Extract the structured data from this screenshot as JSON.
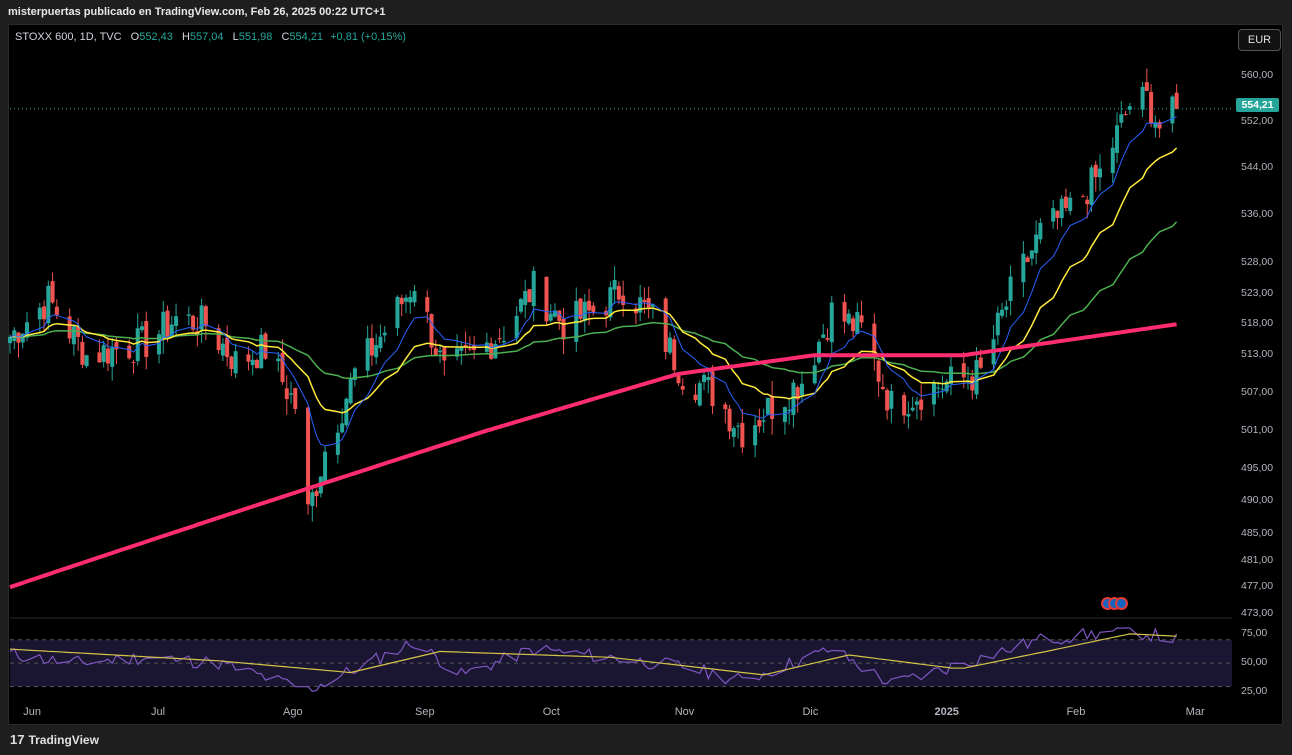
{
  "header": {
    "publisher_text": "misterpuertas publicado en TradingView.com, Feb 26, 2025 00:22 UTC+1"
  },
  "legend": {
    "symbol": "STOXX 600, 1D, TVC",
    "o_label": "O",
    "o_value": "552,43",
    "h_label": "H",
    "h_value": "557,04",
    "l_label": "L",
    "l_value": "551,98",
    "c_label": "C",
    "c_value": "554,21",
    "change": "+0,81 (+0,15%)"
  },
  "currency_button": "EUR",
  "last_price_tag": "554,21",
  "footer": {
    "brand": "TradingView",
    "logo_glyph": "17"
  },
  "colors": {
    "up": "#26a69a",
    "down": "#ef5350",
    "ema_fast": "#2962ff",
    "ema_mid": "#ffeb3b",
    "ema_slow": "#4caf50",
    "ma_200": "#ff2d6f",
    "rsi": "#7e57c2",
    "rsi_ma": "#d4c44a",
    "rsi_band": "#1a1530"
  },
  "chart_data": [
    {
      "type": "candlestick",
      "title": "STOXX 600, 1D, TVC",
      "x_ticks": [
        "Jun",
        "Jul",
        "Ago",
        "Sep",
        "Oct",
        "Nov",
        "Dic",
        "2025",
        "Feb",
        "Mar"
      ],
      "y_ticks": [
        "560,00",
        "552,00",
        "544,00",
        "536,00",
        "528,00",
        "523,00",
        "518,00",
        "513,00",
        "507,00",
        "501,00",
        "495,00",
        "490,00",
        "485,00",
        "481,00",
        "477,00",
        "473,00"
      ],
      "ylim": [
        473,
        561
      ],
      "scale": "log",
      "last_close": 554.21,
      "close_series_anchors": [
        [
          "2024-05-27",
          516
        ],
        [
          "2024-06-05",
          522
        ],
        [
          "2024-06-14",
          513
        ],
        [
          "2024-06-28",
          515
        ],
        [
          "2024-07-05",
          519
        ],
        [
          "2024-07-12",
          518
        ],
        [
          "2024-07-19",
          512
        ],
        [
          "2024-07-26",
          514
        ],
        [
          "2024-08-02",
          505
        ],
        [
          "2024-08-05",
          488
        ],
        [
          "2024-08-09",
          498
        ],
        [
          "2024-08-16",
          510
        ],
        [
          "2024-08-23",
          517
        ],
        [
          "2024-08-30",
          525
        ],
        [
          "2024-09-06",
          510
        ],
        [
          "2024-09-13",
          513
        ],
        [
          "2024-09-20",
          517
        ],
        [
          "2024-09-27",
          524
        ],
        [
          "2024-10-04",
          518
        ],
        [
          "2024-10-11",
          520
        ],
        [
          "2024-10-18",
          524
        ],
        [
          "2024-10-25",
          519
        ],
        [
          "2024-11-01",
          510
        ],
        [
          "2024-11-08",
          507
        ],
        [
          "2024-11-15",
          501
        ],
        [
          "2024-11-22",
          505
        ],
        [
          "2024-11-29",
          509
        ],
        [
          "2024-12-06",
          520
        ],
        [
          "2024-12-13",
          517
        ],
        [
          "2024-12-20",
          505
        ],
        [
          "2024-12-30",
          508
        ],
        [
          "2025-01-10",
          510
        ],
        [
          "2025-01-17",
          523
        ],
        [
          "2025-01-24",
          533
        ],
        [
          "2025-01-31",
          537
        ],
        [
          "2025-02-07",
          543
        ],
        [
          "2025-02-14",
          555
        ],
        [
          "2025-02-18",
          556
        ],
        [
          "2025-02-21",
          551
        ],
        [
          "2025-02-25",
          554.21
        ]
      ],
      "series": [
        {
          "name": "",
          "kind": "ema_fast",
          "color": "#2962ff"
        },
        {
          "name": "",
          "kind": "ema_mid",
          "color": "#ffeb3b"
        },
        {
          "name": "",
          "kind": "ema_slow",
          "color": "#4caf50"
        },
        {
          "name": "",
          "kind": "ma_200",
          "color": "#ff2d6f",
          "values": [
            [
              "2024-05-27",
              477
            ],
            [
              "2024-08-05",
              492
            ],
            [
              "2024-09-16",
              501
            ],
            [
              "2024-10-31",
              510
            ],
            [
              "2024-12-02",
              513
            ],
            [
              "2025-01-06",
              513
            ],
            [
              "2025-02-25",
              518
            ]
          ]
        }
      ]
    },
    {
      "type": "line",
      "title": "",
      "y_ticks": [
        "75,00",
        "50,00",
        "25,00"
      ],
      "ylim": [
        22,
        80
      ],
      "bands": [
        70,
        50,
        30
      ],
      "series": [
        {
          "name": "",
          "color": "#7e57c2",
          "values": [
            [
              "2024-05-27",
              58
            ],
            [
              "2024-06-10",
              50
            ],
            [
              "2024-06-28",
              55
            ],
            [
              "2024-07-15",
              50
            ],
            [
              "2024-08-05",
              27
            ],
            [
              "2024-08-30",
              68
            ],
            [
              "2024-09-10",
              40
            ],
            [
              "2024-09-27",
              62
            ],
            [
              "2024-10-15",
              55
            ],
            [
              "2024-11-01",
              47
            ],
            [
              "2024-11-15",
              35
            ],
            [
              "2024-12-06",
              62
            ],
            [
              "2024-12-20",
              32
            ],
            [
              "2025-01-06",
              50
            ],
            [
              "2025-01-24",
              70
            ],
            [
              "2025-02-14",
              78
            ],
            [
              "2025-02-25",
              70
            ]
          ]
        },
        {
          "name": "",
          "color": "#d4c44a",
          "values": [
            [
              "2024-05-27",
              62
            ],
            [
              "2024-07-15",
              52
            ],
            [
              "2024-08-15",
              42
            ],
            [
              "2024-09-05",
              60
            ],
            [
              "2024-10-15",
              55
            ],
            [
              "2024-11-20",
              40
            ],
            [
              "2024-12-10",
              57
            ],
            [
              "2025-01-05",
              45
            ],
            [
              "2025-01-28",
              62
            ],
            [
              "2025-02-14",
              75
            ],
            [
              "2025-02-25",
              73
            ]
          ]
        }
      ]
    }
  ]
}
